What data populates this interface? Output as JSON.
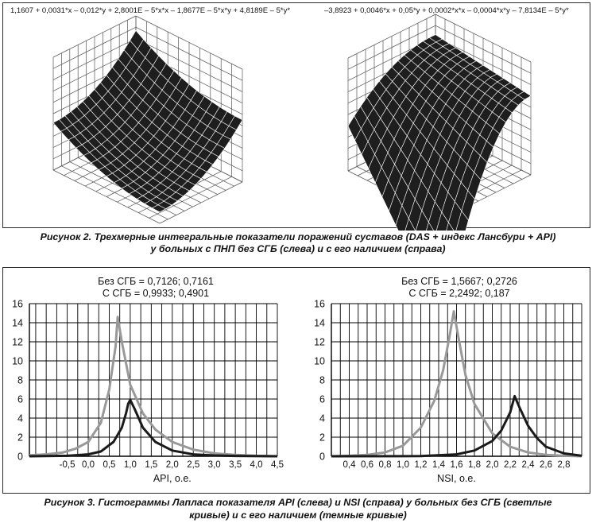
{
  "figure2": {
    "formula_left": "1,1607 + 0,0031*x – 0,012*y + 2,8001E – 5*x*x – 1,8677E – 5*x*y + 4,8189E – 5*y*",
    "formula_right": "–3,8923 + 0,0046*x + 0,05*y + 0,0002*x*x – 0,0004*x*y – 7,8134E – 5*y*",
    "caption_line1": "Рисунок 2. Трехмерные интегральные показатели поражений суставов (DAS + индекс Лансбури + API)",
    "caption_line2": "у больных с ПНП без СГБ (слева) и с его наличием (справа)"
  },
  "figure3": {
    "caption_line1": "Рисунок 3. Гистограммы Лапласа показателя API (слева) и NSI (справа) у больных без СГБ (светлые",
    "caption_line2": "кривые) и с его наличием (темные кривые)"
  },
  "colors": {
    "light_curve": "#999999",
    "dark_curve": "#1a1a1a",
    "grid": "#000000",
    "surface": "#1e1e1e"
  },
  "chart_data": [
    {
      "type": "line",
      "title": "",
      "annotation_line1": "Без СГБ = 0,7126; 0,7161",
      "annotation_line2": "С СГБ = 0,9933; 0,4901",
      "xlabel": "API, о.е.",
      "ylabel": "",
      "xlim": [
        -1.4,
        4.5
      ],
      "ylim": [
        0,
        16
      ],
      "x_ticks": [
        -0.5,
        0.0,
        0.5,
        1.0,
        1.5,
        2.0,
        2.5,
        3.0,
        3.5,
        4.0,
        4.5
      ],
      "x_tick_labels": [
        "-0,5",
        "0,0",
        "0,5",
        "1,0",
        "1,5",
        "2,0",
        "2,5",
        "3,0",
        "3,5",
        "4,0",
        "4,5"
      ],
      "y_ticks": [
        0,
        2,
        4,
        6,
        8,
        10,
        12,
        14,
        16
      ],
      "grid": true,
      "series": [
        {
          "x": [
            -1.4,
            -1.0,
            -0.6,
            -0.3,
            0.0,
            0.3,
            0.5,
            0.65,
            0.7,
            0.8,
            1.0,
            1.3,
            1.6,
            2.0,
            2.5,
            3.0,
            3.5,
            4.0,
            4.5
          ],
          "y": [
            0.1,
            0.2,
            0.4,
            0.8,
            1.5,
            3.5,
            7.0,
            11.5,
            14.6,
            12.0,
            7.5,
            4.5,
            2.8,
            1.5,
            0.7,
            0.3,
            0.15,
            0.05,
            0.0
          ]
        },
        {
          "x": [
            -1.4,
            -0.5,
            0.0,
            0.3,
            0.6,
            0.8,
            0.9,
            0.95,
            1.0,
            1.1,
            1.3,
            1.6,
            2.0,
            2.5,
            3.0,
            3.5,
            4.5
          ],
          "y": [
            0.0,
            0.05,
            0.2,
            0.5,
            1.5,
            3.0,
            4.5,
            5.5,
            5.9,
            5.0,
            3.0,
            1.5,
            0.6,
            0.2,
            0.08,
            0.03,
            0.0
          ]
        }
      ]
    },
    {
      "type": "line",
      "title": "",
      "annotation_line1": "Без СГБ = 1,5667; 0,2726",
      "annotation_line2": "С СГБ = 2,2492; 0,187",
      "xlabel": "NSI, о.е.",
      "ylabel": "",
      "xlim": [
        0.2,
        3.0
      ],
      "ylim": [
        0,
        16
      ],
      "x_ticks": [
        0.4,
        0.6,
        0.8,
        1.0,
        1.2,
        1.4,
        1.6,
        1.8,
        2.0,
        2.2,
        2.4,
        2.6,
        2.8
      ],
      "x_tick_labels": [
        "0,4",
        "0,6",
        "0,8",
        "1,0",
        "1,2",
        "1,4",
        "1,6",
        "1,8",
        "2,0",
        "2,2",
        "2,4",
        "2,6",
        "2,8"
      ],
      "y_ticks": [
        0,
        2,
        4,
        6,
        8,
        10,
        12,
        14,
        16
      ],
      "grid": true,
      "series": [
        {
          "x": [
            0.2,
            0.4,
            0.6,
            0.8,
            1.0,
            1.2,
            1.35,
            1.45,
            1.52,
            1.57,
            1.62,
            1.7,
            1.8,
            2.0,
            2.2,
            2.4,
            2.6,
            2.8,
            3.0
          ],
          "y": [
            0.0,
            0.05,
            0.15,
            0.4,
            1.1,
            3.0,
            5.8,
            9.0,
            12.5,
            15.2,
            12.5,
            8.5,
            5.5,
            2.4,
            1.0,
            0.4,
            0.15,
            0.05,
            0.0
          ]
        },
        {
          "x": [
            0.2,
            1.2,
            1.6,
            1.8,
            2.0,
            2.1,
            2.2,
            2.25,
            2.3,
            2.4,
            2.5,
            2.6,
            2.8,
            3.0
          ],
          "y": [
            0.0,
            0.02,
            0.2,
            0.6,
            1.6,
            2.7,
            4.6,
            6.3,
            5.2,
            3.2,
            1.9,
            1.0,
            0.3,
            0.05
          ]
        }
      ]
    }
  ]
}
